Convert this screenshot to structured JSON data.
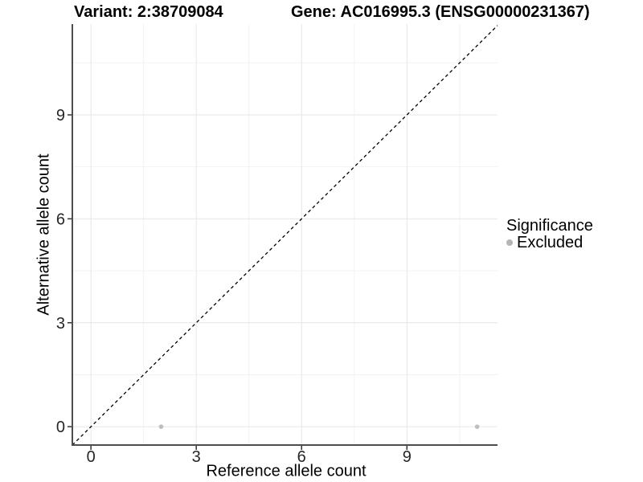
{
  "chart_data": {
    "type": "scatter",
    "titles": {
      "variant": "Variant: 2:38709084",
      "gene": "Gene: AC016995.3 (ENSG00000231367)"
    },
    "xlabel": "Reference allele count",
    "ylabel": "Alternative allele count",
    "x_ticks": [
      0,
      3,
      6,
      9
    ],
    "y_ticks": [
      0,
      3,
      6,
      9
    ],
    "x_minor_ticks": [
      1.5,
      4.5,
      7.5,
      10.5
    ],
    "y_minor_ticks": [
      1.5,
      4.5,
      7.5,
      10.5
    ],
    "xlim": [
      -0.53,
      11.58
    ],
    "ylim": [
      -0.53,
      11.62
    ],
    "grid": {
      "major_color": "#e6e6e6",
      "minor_color": "#f2f2f2"
    },
    "series": [
      {
        "name": "Excluded",
        "color": "#bebebe",
        "points": [
          {
            "x": 2,
            "y": 0
          },
          {
            "x": 11,
            "y": 0
          }
        ]
      }
    ],
    "reference_line": {
      "equation": "y = x",
      "style": "dashed",
      "color": "#000000"
    },
    "legend": {
      "title": "Significance",
      "position": "right",
      "entries": [
        {
          "label": "Excluded",
          "color": "#b5b5b5"
        }
      ]
    },
    "axis": {
      "line_color": "#4d4d4d",
      "tick_color": "#333333",
      "tick_label_color": "#262626"
    }
  }
}
